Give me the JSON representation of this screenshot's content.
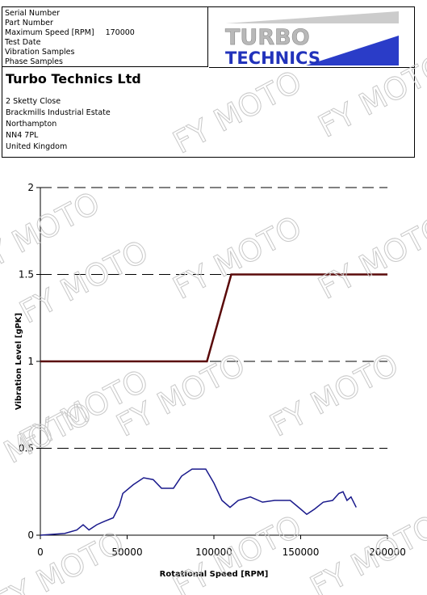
{
  "header": {
    "fields": [
      {
        "label": "Serial Number"
      },
      {
        "label": "Part Number"
      },
      {
        "label": "Maximum Speed [RPM]",
        "value": 170000
      },
      {
        "label": "Test Date"
      },
      {
        "label": "Vibration Samples"
      },
      {
        "label": "Phase Samples"
      }
    ],
    "logo": [
      "TURBO",
      "TECHNICS"
    ],
    "company": "Turbo Technics Ltd",
    "address": [
      "2 Sketty Close",
      "Brackmills Industrial Estate",
      "Northampton",
      "NN4 7PL",
      "United Kingdom"
    ]
  },
  "watermark": "FY MOTO",
  "chart_data": {
    "type": "line",
    "x_label": "Rotational Speed [RPM]",
    "y_label": "Vibration Level [gPK]",
    "xlim": [
      0,
      200000
    ],
    "xticks": [
      0,
      50000,
      100000,
      150000,
      200000
    ],
    "ylim": [
      0,
      2
    ],
    "yticks": [
      0,
      0.5,
      1,
      1.5,
      2
    ],
    "grid": true,
    "series": [
      {
        "color": "#5a0a0a",
        "x": [
          0,
          96000,
          110000,
          200000
        ],
        "values": [
          1,
          1,
          1.5,
          1.5
        ]
      },
      {
        "color": "#1a1a8c",
        "x": [
          0,
          14000,
          21000,
          24650,
          28000,
          32500,
          37000,
          42000,
          45500,
          47500,
          53500,
          59500,
          65000,
          69800,
          76700,
          81400,
          87400,
          95300,
          100000,
          104650,
          109300,
          114000,
          121000,
          128000,
          135000,
          144000,
          150000,
          153500,
          158000,
          163000,
          168400,
          172000,
          174400,
          176700,
          179000,
          182000
        ],
        "values": [
          0,
          0.01,
          0.03,
          0.06,
          0.03,
          0.06,
          0.08,
          0.1,
          0.17,
          0.24,
          0.29,
          0.33,
          0.32,
          0.27,
          0.27,
          0.34,
          0.38,
          0.38,
          0.3,
          0.2,
          0.16,
          0.2,
          0.22,
          0.19,
          0.2,
          0.2,
          0.15,
          0.12,
          0.15,
          0.19,
          0.2,
          0.24,
          0.25,
          0.2,
          0.22,
          0.16
        ]
      }
    ]
  }
}
